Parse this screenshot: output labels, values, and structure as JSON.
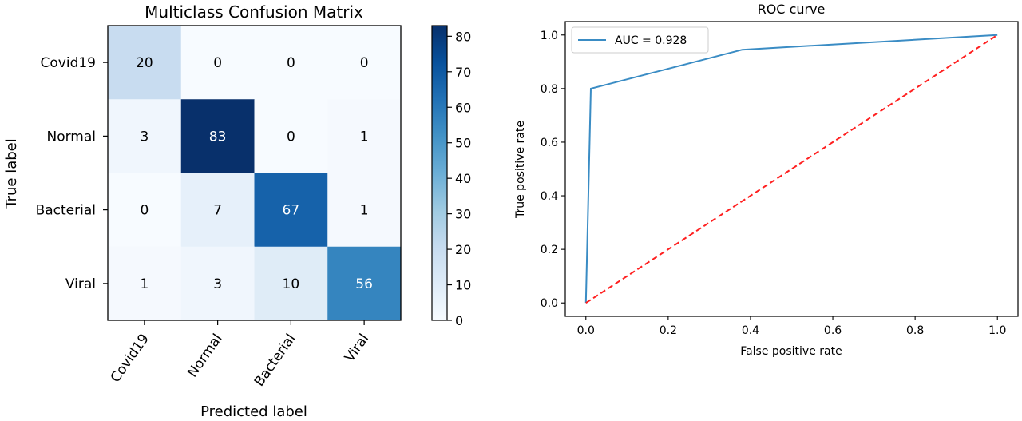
{
  "chart_data": [
    {
      "type": "heatmap",
      "title": "Multiclass Confusion Matrix",
      "xlabel": "Predicted label",
      "ylabel": "True label",
      "x_categories": [
        "Covid19",
        "Normal",
        "Bacterial",
        "Viral"
      ],
      "y_categories": [
        "Covid19",
        "Normal",
        "Bacterial",
        "Viral"
      ],
      "values": [
        [
          20,
          0,
          0,
          0
        ],
        [
          3,
          83,
          0,
          1
        ],
        [
          0,
          7,
          67,
          1
        ],
        [
          1,
          3,
          10,
          56
        ]
      ],
      "colormap": "Blues",
      "colorbar": {
        "range": [
          0,
          83
        ],
        "ticks": [
          0,
          10,
          20,
          30,
          40,
          50,
          60,
          70,
          80
        ]
      }
    },
    {
      "type": "line",
      "title": "ROC curve",
      "xlabel": "False positive rate",
      "ylabel": "True positive rate",
      "xlim": [
        -0.05,
        1.05
      ],
      "ylim": [
        -0.05,
        1.05
      ],
      "xticks": [
        0.0,
        0.2,
        0.4,
        0.6,
        0.8,
        1.0
      ],
      "yticks": [
        0.0,
        0.2,
        0.4,
        0.6,
        0.8,
        1.0
      ],
      "legend": "upper-left",
      "series": [
        {
          "name": "AUC = 0.928",
          "color": "#3a8cc4",
          "x": [
            0.0,
            0.012,
            0.38,
            1.0
          ],
          "y": [
            0.0,
            0.8,
            0.945,
            1.0
          ]
        },
        {
          "color": "#ff2020",
          "style": "dashed",
          "x": [
            0.0,
            1.0
          ],
          "y": [
            0.0,
            1.0
          ]
        }
      ]
    }
  ]
}
